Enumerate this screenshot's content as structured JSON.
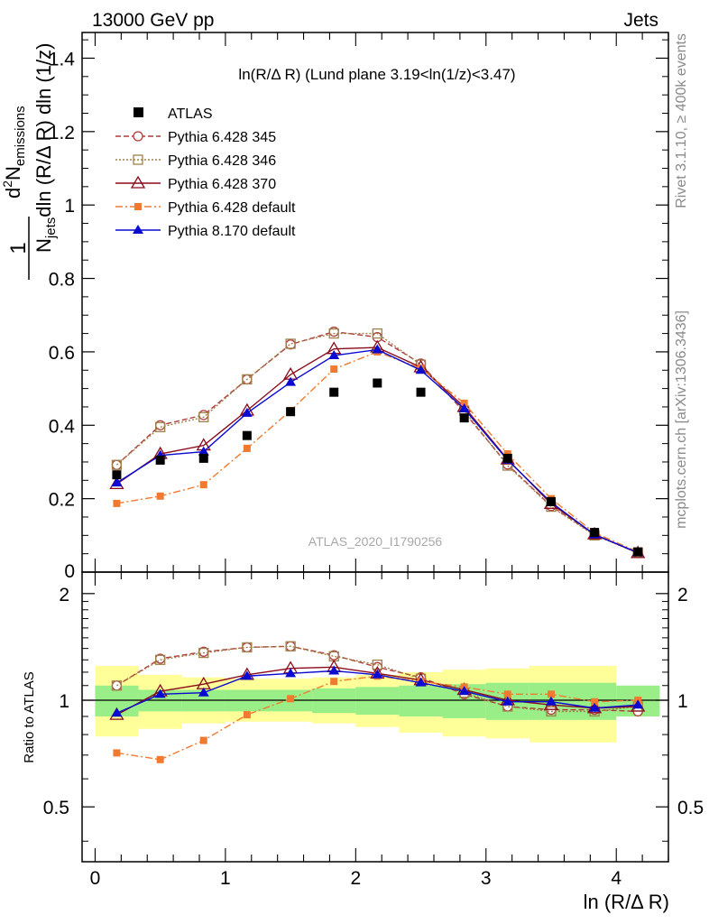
{
  "header": {
    "left": "13000 GeV pp",
    "right": "Jets"
  },
  "side_text": {
    "rivet": "Rivet 3.1.10, ≥ 400k events",
    "mcplots": "mcplots.cern.ch [arXiv:1306.3436]"
  },
  "watermark": "ATLAS_2020_I1790256",
  "chart_data": {
    "type": "line",
    "title": "ln(R/Δ R) (Lund plane 3.19<ln(1/z)<3.47)",
    "xlabel": "ln (R/Δ R)",
    "ylabel": "1/N_jets dln (R/Δ R) dln (1/z) / d² N_emissions",
    "ylabel_parts": {
      "frac": "1",
      "denominator_main": "N",
      "denominator_sub": "jets",
      "denominator_rest": "dln (R/Δ R) dln (1/z)",
      "numerator_main": "d",
      "numerator_sup": "2",
      "numerator_N": "N",
      "numerator_sub": "emissions"
    },
    "ratio_ylabel": "Ratio to ATLAS",
    "xlim": [
      -0.1,
      4.4
    ],
    "ylim": [
      0,
      1.47
    ],
    "ratio_ylim": [
      0.35,
      2.3
    ],
    "x_ticks": [
      "0",
      "1",
      "2",
      "3",
      "4"
    ],
    "x_tick_values": [
      0,
      1,
      2,
      3,
      4
    ],
    "y_ticks": [
      "0.2",
      "0.4",
      "0.6",
      "0.8",
      "1",
      "1.2",
      "1.4"
    ],
    "y_tick_values": [
      0.2,
      0.4,
      0.6,
      0.8,
      1.0,
      1.2,
      1.4
    ],
    "y_zero_label": "0",
    "ratio_ticks": [
      "0.5",
      "1",
      "2"
    ],
    "ratio_tick_values": [
      0.5,
      1,
      2
    ],
    "x": [
      0.166,
      0.5,
      0.833,
      1.166,
      1.5,
      1.833,
      2.166,
      2.5,
      2.833,
      3.166,
      3.5,
      3.833,
      4.166
    ],
    "bin_edges": [
      0,
      0.333,
      0.666,
      1.0,
      1.333,
      1.666,
      2.0,
      2.333,
      2.666,
      3.0,
      3.333,
      3.666,
      4.0,
      4.333
    ],
    "data": {
      "name": "ATLAS",
      "values": [
        0.265,
        0.305,
        0.31,
        0.372,
        0.437,
        0.49,
        0.515,
        0.49,
        0.42,
        0.31,
        0.192,
        0.108,
        0.055
      ],
      "band_inner": [
        [
          0.9,
          1.1
        ],
        [
          0.93,
          1.07
        ],
        [
          0.93,
          1.07
        ],
        [
          0.93,
          1.07
        ],
        [
          0.93,
          1.07
        ],
        [
          0.92,
          1.08
        ],
        [
          0.91,
          1.09
        ],
        [
          0.9,
          1.1
        ],
        [
          0.89,
          1.11
        ],
        [
          0.88,
          1.12
        ],
        [
          0.88,
          1.12
        ],
        [
          0.88,
          1.12
        ],
        [
          0.9,
          1.1
        ]
      ],
      "band_outer": [
        [
          0.79,
          1.25
        ],
        [
          0.83,
          1.18
        ],
        [
          0.86,
          1.16
        ],
        [
          0.87,
          1.15
        ],
        [
          0.87,
          1.15
        ],
        [
          0.86,
          1.16
        ],
        [
          0.84,
          1.18
        ],
        [
          0.81,
          1.2
        ],
        [
          0.79,
          1.22
        ],
        [
          0.78,
          1.23
        ],
        [
          0.76,
          1.25
        ],
        [
          0.76,
          1.25
        ],
        [
          0.92,
          1.08
        ]
      ]
    },
    "series": [
      {
        "name": "Pythia 6.428 345",
        "color": "#b03a3a",
        "values": [
          0.292,
          0.4,
          0.428,
          0.525,
          0.62,
          0.655,
          0.64,
          0.568,
          0.435,
          0.293,
          0.18,
          0.102,
          0.052
        ],
        "ratio": [
          1.1,
          1.31,
          1.37,
          1.41,
          1.42,
          1.34,
          1.24,
          1.16,
          1.04,
          0.96,
          0.94,
          0.94,
          0.93
        ]
      },
      {
        "name": "Pythia 6.428 346",
        "color": "#a0804a",
        "values": [
          0.292,
          0.395,
          0.422,
          0.525,
          0.622,
          0.65,
          0.65,
          0.565,
          0.44,
          0.29,
          0.178,
          0.1,
          0.053
        ],
        "ratio": [
          1.1,
          1.3,
          1.36,
          1.41,
          1.42,
          1.33,
          1.26,
          1.15,
          1.05,
          0.96,
          0.93,
          0.93,
          0.96
        ]
      },
      {
        "name": "Pythia 6.428 370",
        "color": "#8b0a1a",
        "values": [
          0.24,
          0.322,
          0.345,
          0.44,
          0.538,
          0.608,
          0.612,
          0.558,
          0.45,
          0.307,
          0.186,
          0.103,
          0.052
        ],
        "ratio": [
          0.91,
          1.06,
          1.11,
          1.18,
          1.23,
          1.24,
          1.19,
          1.14,
          1.07,
          1.0,
          0.97,
          0.95,
          0.96
        ]
      },
      {
        "name": "Pythia 6.428 default",
        "color": "#f07b30",
        "values": [
          0.187,
          0.207,
          0.238,
          0.337,
          0.44,
          0.553,
          0.6,
          0.555,
          0.46,
          0.322,
          0.2,
          0.107,
          0.055
        ],
        "ratio": [
          0.71,
          0.68,
          0.77,
          0.91,
          1.01,
          1.13,
          1.17,
          1.13,
          1.09,
          1.04,
          1.04,
          0.99,
          1.0
        ]
      },
      {
        "name": "Pythia 8.170 default",
        "color": "#0a0ad0",
        "values": [
          0.243,
          0.318,
          0.328,
          0.433,
          0.517,
          0.59,
          0.606,
          0.55,
          0.445,
          0.305,
          0.19,
          0.102,
          0.053
        ],
        "ratio": [
          0.92,
          1.04,
          1.05,
          1.17,
          1.19,
          1.21,
          1.18,
          1.12,
          1.06,
          0.99,
          0.99,
          0.95,
          0.97
        ]
      }
    ],
    "legend_placement": "top-left"
  }
}
